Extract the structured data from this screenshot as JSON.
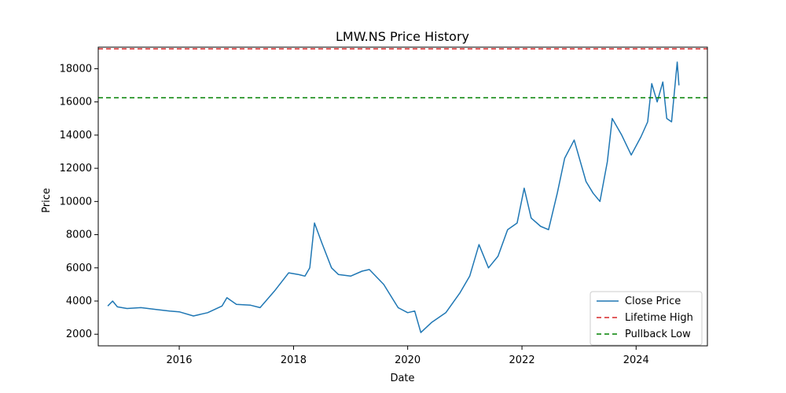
{
  "chart_data": {
    "type": "line",
    "title": "LMW.NS Price History",
    "xlabel": "Date",
    "ylabel": "Price",
    "xlim": [
      "2014-08-01",
      "2025-04-01"
    ],
    "ylim": [
      1300,
      19300
    ],
    "x_ticks": [
      "2016",
      "2018",
      "2020",
      "2022",
      "2024"
    ],
    "y_ticks": [
      2000,
      4000,
      6000,
      8000,
      10000,
      12000,
      14000,
      16000,
      18000
    ],
    "grid": false,
    "legend_position": "lower right",
    "series": [
      {
        "name": "Close Price",
        "color": "#1f77b4",
        "style": "solid",
        "x": [
          "2014-10-01",
          "2014-11-01",
          "2014-12-01",
          "2015-02-01",
          "2015-05-01",
          "2015-08-01",
          "2015-11-01",
          "2016-01-01",
          "2016-04-01",
          "2016-07-01",
          "2016-10-01",
          "2016-11-01",
          "2017-01-01",
          "2017-04-01",
          "2017-06-01",
          "2017-09-01",
          "2017-12-01",
          "2018-02-01",
          "2018-03-15",
          "2018-04-15",
          "2018-05-15",
          "2018-07-01",
          "2018-09-01",
          "2018-10-15",
          "2019-01-01",
          "2019-03-15",
          "2019-05-01",
          "2019-08-01",
          "2019-11-01",
          "2020-01-01",
          "2020-02-15",
          "2020-03-25",
          "2020-06-01",
          "2020-09-01",
          "2020-12-01",
          "2021-02-01",
          "2021-04-01",
          "2021-06-01",
          "2021-08-01",
          "2021-10-01",
          "2021-12-01",
          "2022-01-15",
          "2022-03-01",
          "2022-05-01",
          "2022-06-20",
          "2022-08-15",
          "2022-10-01",
          "2022-12-01",
          "2023-02-15",
          "2023-04-01",
          "2023-05-15",
          "2023-07-01",
          "2023-08-01",
          "2023-10-01",
          "2023-12-01",
          "2024-02-01",
          "2024-03-15",
          "2024-04-10",
          "2024-05-15",
          "2024-06-20",
          "2024-07-15",
          "2024-08-15",
          "2024-09-20",
          "2024-10-01"
        ],
        "y": [
          3700,
          4000,
          3650,
          3550,
          3600,
          3500,
          3400,
          3350,
          3100,
          3300,
          3700,
          4200,
          3800,
          3750,
          3600,
          4600,
          5700,
          5600,
          5500,
          6000,
          8700,
          7500,
          6000,
          5600,
          5500,
          5800,
          5900,
          5000,
          3600,
          3300,
          3400,
          2100,
          2700,
          3300,
          4500,
          5500,
          7400,
          6000,
          6700,
          8300,
          8700,
          10800,
          9000,
          8500,
          8300,
          10500,
          12600,
          13700,
          11200,
          10500,
          10000,
          12400,
          15000,
          14000,
          12800,
          13900,
          14800,
          17100,
          16000,
          17200,
          15000,
          14800,
          18400,
          17000
        ]
      }
    ],
    "hlines": [
      {
        "name": "Lifetime High",
        "value": 19200,
        "color": "#d62728",
        "style": "dashed"
      },
      {
        "name": "Pullback Low",
        "value": 16250,
        "color": "#008000",
        "style": "dashed"
      }
    ]
  }
}
